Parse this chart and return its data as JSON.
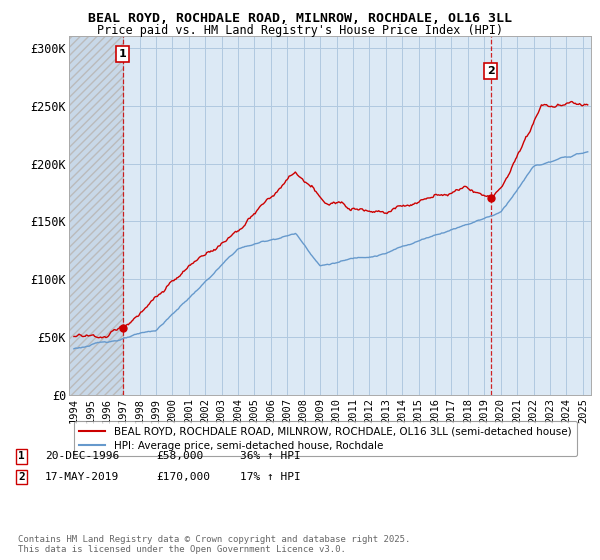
{
  "title": "BEAL ROYD, ROCHDALE ROAD, MILNROW, ROCHDALE, OL16 3LL",
  "subtitle": "Price paid vs. HM Land Registry's House Price Index (HPI)",
  "ylim": [
    0,
    310000
  ],
  "yticks": [
    0,
    50000,
    100000,
    150000,
    200000,
    250000,
    300000
  ],
  "ytick_labels": [
    "£0",
    "£50K",
    "£100K",
    "£150K",
    "£200K",
    "£250K",
    "£300K"
  ],
  "xlim_start": 1993.7,
  "xlim_end": 2025.5,
  "xtick_years": [
    1994,
    1995,
    1996,
    1997,
    1998,
    1999,
    2000,
    2001,
    2002,
    2003,
    2004,
    2005,
    2006,
    2007,
    2008,
    2009,
    2010,
    2011,
    2012,
    2013,
    2014,
    2015,
    2016,
    2017,
    2018,
    2019,
    2020,
    2021,
    2022,
    2023,
    2024,
    2025
  ],
  "sale1_x": 1996.97,
  "sale1_y": 58000,
  "sale2_x": 2019.38,
  "sale2_y": 170000,
  "property_color": "#cc0000",
  "hpi_color": "#6699cc",
  "plot_bg_color": "#dce9f5",
  "legend_label1": "BEAL ROYD, ROCHDALE ROAD, MILNROW, ROCHDALE, OL16 3LL (semi-detached house)",
  "legend_label2": "HPI: Average price, semi-detached house, Rochdale",
  "annotation1_text": "20-DEC-1996        £58,000        36% ↑ HPI",
  "annotation2_text": "17-MAY-2019        £170,000        17% ↑ HPI",
  "copyright_text": "Contains HM Land Registry data © Crown copyright and database right 2025.\nThis data is licensed under the Open Government Licence v3.0.",
  "background_color": "#ffffff",
  "grid_color": "#b0c8e0",
  "hatch_color": "#bbbbbb"
}
